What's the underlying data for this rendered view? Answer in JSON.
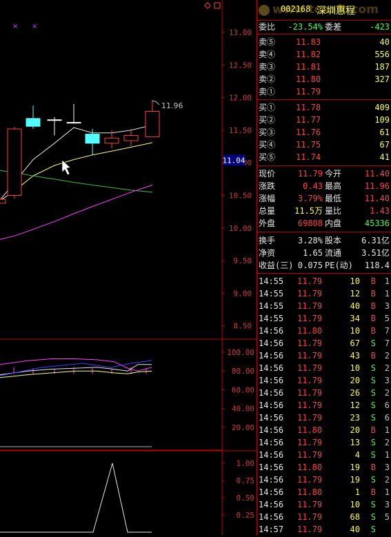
{
  "header": {
    "code": "002168",
    "name": "深圳惠程",
    "watermark": "www.tcsoft.com"
  },
  "ratio": {
    "wb_label": "委比",
    "wb_value": "-23.54%",
    "wc_label": "委差",
    "wc_value": "-423"
  },
  "asks": [
    {
      "label": "卖⑤",
      "price": "11.83",
      "vol": "40"
    },
    {
      "label": "卖④",
      "price": "11.82",
      "vol": "556"
    },
    {
      "label": "卖③",
      "price": "11.81",
      "vol": "187"
    },
    {
      "label": "卖②",
      "price": "11.80",
      "vol": "327"
    },
    {
      "label": "卖①",
      "price": "11.79",
      "vol": ""
    }
  ],
  "bids": [
    {
      "label": "买①",
      "price": "11.78",
      "vol": "409"
    },
    {
      "label": "买②",
      "price": "11.77",
      "vol": "109"
    },
    {
      "label": "买③",
      "price": "11.76",
      "vol": "61"
    },
    {
      "label": "买④",
      "price": "11.75",
      "vol": "67"
    },
    {
      "label": "买⑤",
      "price": "11.74",
      "vol": "41"
    }
  ],
  "quote": [
    {
      "l1": "现价",
      "v1": "11.79",
      "c1": "red",
      "l2": "今开",
      "v2": "11.40",
      "c2": "red"
    },
    {
      "l1": "涨跌",
      "v1": "0.43",
      "c1": "red",
      "l2": "最高",
      "v2": "11.96",
      "c2": "red"
    },
    {
      "l1": "涨幅",
      "v1": "3.79%",
      "c1": "red",
      "l2": "最低",
      "v2": "11.40",
      "c2": "red"
    },
    {
      "l1": "总量",
      "v1": "11.5万",
      "c1": "yellow",
      "l2": "量比",
      "v2": "1.43",
      "c2": "red"
    },
    {
      "l1": "外盘",
      "v1": "69808",
      "c1": "red",
      "l2": "内盘",
      "v2": "45336",
      "c2": "green"
    }
  ],
  "fund": [
    {
      "l1": "换手",
      "v1": "3.28%",
      "l2": "股本",
      "v2": "6.31亿"
    },
    {
      "l1": "净资",
      "v1": "1.65",
      "l2": "流通",
      "v2": "3.51亿"
    },
    {
      "l1": "收益(三)",
      "v1": "0.075",
      "l2": "PE(动)",
      "v2": "118.4"
    }
  ],
  "ticks": [
    {
      "t": "14:55",
      "p": "11.79",
      "pc": "red",
      "v": "10",
      "d": "B",
      "n": "1"
    },
    {
      "t": "14:55",
      "p": "11.79",
      "pc": "red",
      "v": "12",
      "d": "B",
      "n": "1"
    },
    {
      "t": "14:55",
      "p": "11.79",
      "pc": "red",
      "v": "40",
      "d": "B",
      "n": "3"
    },
    {
      "t": "14:55",
      "p": "11.79",
      "pc": "red",
      "v": "34",
      "d": "B",
      "n": "5"
    },
    {
      "t": "14:56",
      "p": "11.80",
      "pc": "red",
      "v": "10",
      "d": "B",
      "n": "7"
    },
    {
      "t": "14:56",
      "p": "11.79",
      "pc": "red",
      "v": "67",
      "d": "S",
      "n": "7"
    },
    {
      "t": "14:56",
      "p": "11.79",
      "pc": "red",
      "v": "43",
      "d": "B",
      "n": "2"
    },
    {
      "t": "14:56",
      "p": "11.79",
      "pc": "red",
      "v": "10",
      "d": "S",
      "n": "2"
    },
    {
      "t": "14:56",
      "p": "11.79",
      "pc": "red",
      "v": "20",
      "d": "S",
      "n": "3"
    },
    {
      "t": "14:56",
      "p": "11.79",
      "pc": "red",
      "v": "26",
      "d": "S",
      "n": "2"
    },
    {
      "t": "14:56",
      "p": "11.79",
      "pc": "red",
      "v": "12",
      "d": "S",
      "n": "6"
    },
    {
      "t": "14:56",
      "p": "11.79",
      "pc": "red",
      "v": "23",
      "d": "S",
      "n": "6"
    },
    {
      "t": "14:56",
      "p": "11.80",
      "pc": "red",
      "v": "20",
      "d": "B",
      "n": "1"
    },
    {
      "t": "14:56",
      "p": "11.79",
      "pc": "red",
      "v": "13",
      "d": "S",
      "n": "2"
    },
    {
      "t": "14:56",
      "p": "11.79",
      "pc": "red",
      "v": "4",
      "d": "S",
      "n": "1"
    },
    {
      "t": "14:56",
      "p": "11.80",
      "pc": "red",
      "v": "19",
      "d": "B",
      "n": "3"
    },
    {
      "t": "14:56",
      "p": "11.79",
      "pc": "red",
      "v": "19",
      "d": "S",
      "n": "2"
    },
    {
      "t": "14:56",
      "p": "11.80",
      "pc": "red",
      "v": "1",
      "d": "B",
      "n": "1"
    },
    {
      "t": "14:56",
      "p": "11.79",
      "pc": "red",
      "v": "10",
      "d": "S",
      "n": "3"
    },
    {
      "t": "14:56",
      "p": "11.79",
      "pc": "red",
      "v": "68",
      "d": "S",
      "n": "5"
    },
    {
      "t": "14:57",
      "p": "11.79",
      "pc": "red",
      "v": "40",
      "d": "S",
      "n": ""
    }
  ],
  "axes": {
    "price_ticks": [
      "13.00",
      "12.50",
      "12.00",
      "11.50",
      "11.00",
      "10.50",
      "10.00",
      "9.50",
      "9.00",
      "8.50"
    ],
    "current_price_tag": "11.04",
    "high_label": "11.96",
    "indicator_ticks": [
      "100.00",
      "80.00",
      "60.00",
      "40.00",
      "20.00"
    ],
    "volume_ticks": [
      "1.00",
      "0.75",
      "0.50",
      "0.25"
    ]
  },
  "colors": {
    "up": "#ff4040",
    "down": "#40ff40",
    "grid": "#c00000",
    "cyan": "#54ffff"
  },
  "chart_data": {
    "type": "candlestick",
    "candles": [
      {
        "open": 10.38,
        "high": 10.48,
        "low": 10.28,
        "close": 10.44
      },
      {
        "open": 10.5,
        "high": 11.55,
        "low": 10.45,
        "close": 11.52
      },
      {
        "open": 11.68,
        "high": 11.88,
        "low": 11.52,
        "close": 11.56
      },
      {
        "open": 11.66,
        "high": 11.7,
        "low": 11.42,
        "close": 11.66
      },
      {
        "open": 11.62,
        "high": 11.9,
        "low": 11.6,
        "close": 11.62
      },
      {
        "open": 11.44,
        "high": 11.52,
        "low": 11.12,
        "close": 11.3
      },
      {
        "open": 11.3,
        "high": 11.5,
        "low": 11.22,
        "close": 11.38
      },
      {
        "open": 11.34,
        "high": 11.52,
        "low": 11.26,
        "close": 11.42
      },
      {
        "open": 11.4,
        "high": 11.96,
        "low": 11.4,
        "close": 11.79
      }
    ],
    "ma_lines": [
      {
        "color": "#e8e8e8",
        "values": [
          10.3,
          10.7,
          11.05,
          11.3,
          11.54,
          11.46,
          11.46,
          11.5,
          11.58
        ]
      },
      {
        "color": "#ffff80",
        "values": [
          10.35,
          10.57,
          10.8,
          10.96,
          11.05,
          11.12,
          11.18,
          11.24,
          11.31
        ]
      },
      {
        "color": "#40c040",
        "values": [
          10.9,
          10.85,
          10.8,
          10.75,
          10.7,
          10.66,
          10.62,
          10.58,
          10.55
        ]
      },
      {
        "color": "#ff40ff",
        "values": [
          9.8,
          9.88,
          9.98,
          10.1,
          10.22,
          10.33,
          10.44,
          10.55,
          10.66
        ]
      }
    ],
    "indicator_lines": [
      {
        "color": "#ff40ff",
        "values": [
          87,
          91,
          93,
          93,
          92,
          90,
          83,
          80,
          84
        ]
      },
      {
        "color": "#e8e8e8",
        "values": [
          76,
          80,
          82,
          83,
          84,
          82,
          80,
          87,
          87
        ]
      },
      {
        "color": "#ffff80",
        "values": [
          73,
          76,
          78,
          80,
          80,
          78,
          77,
          79,
          80
        ]
      }
    ],
    "volume_line": {
      "color": "#e8e8e8",
      "values": [
        0,
        0,
        0,
        0,
        0,
        1.0,
        0,
        0,
        0
      ]
    }
  }
}
